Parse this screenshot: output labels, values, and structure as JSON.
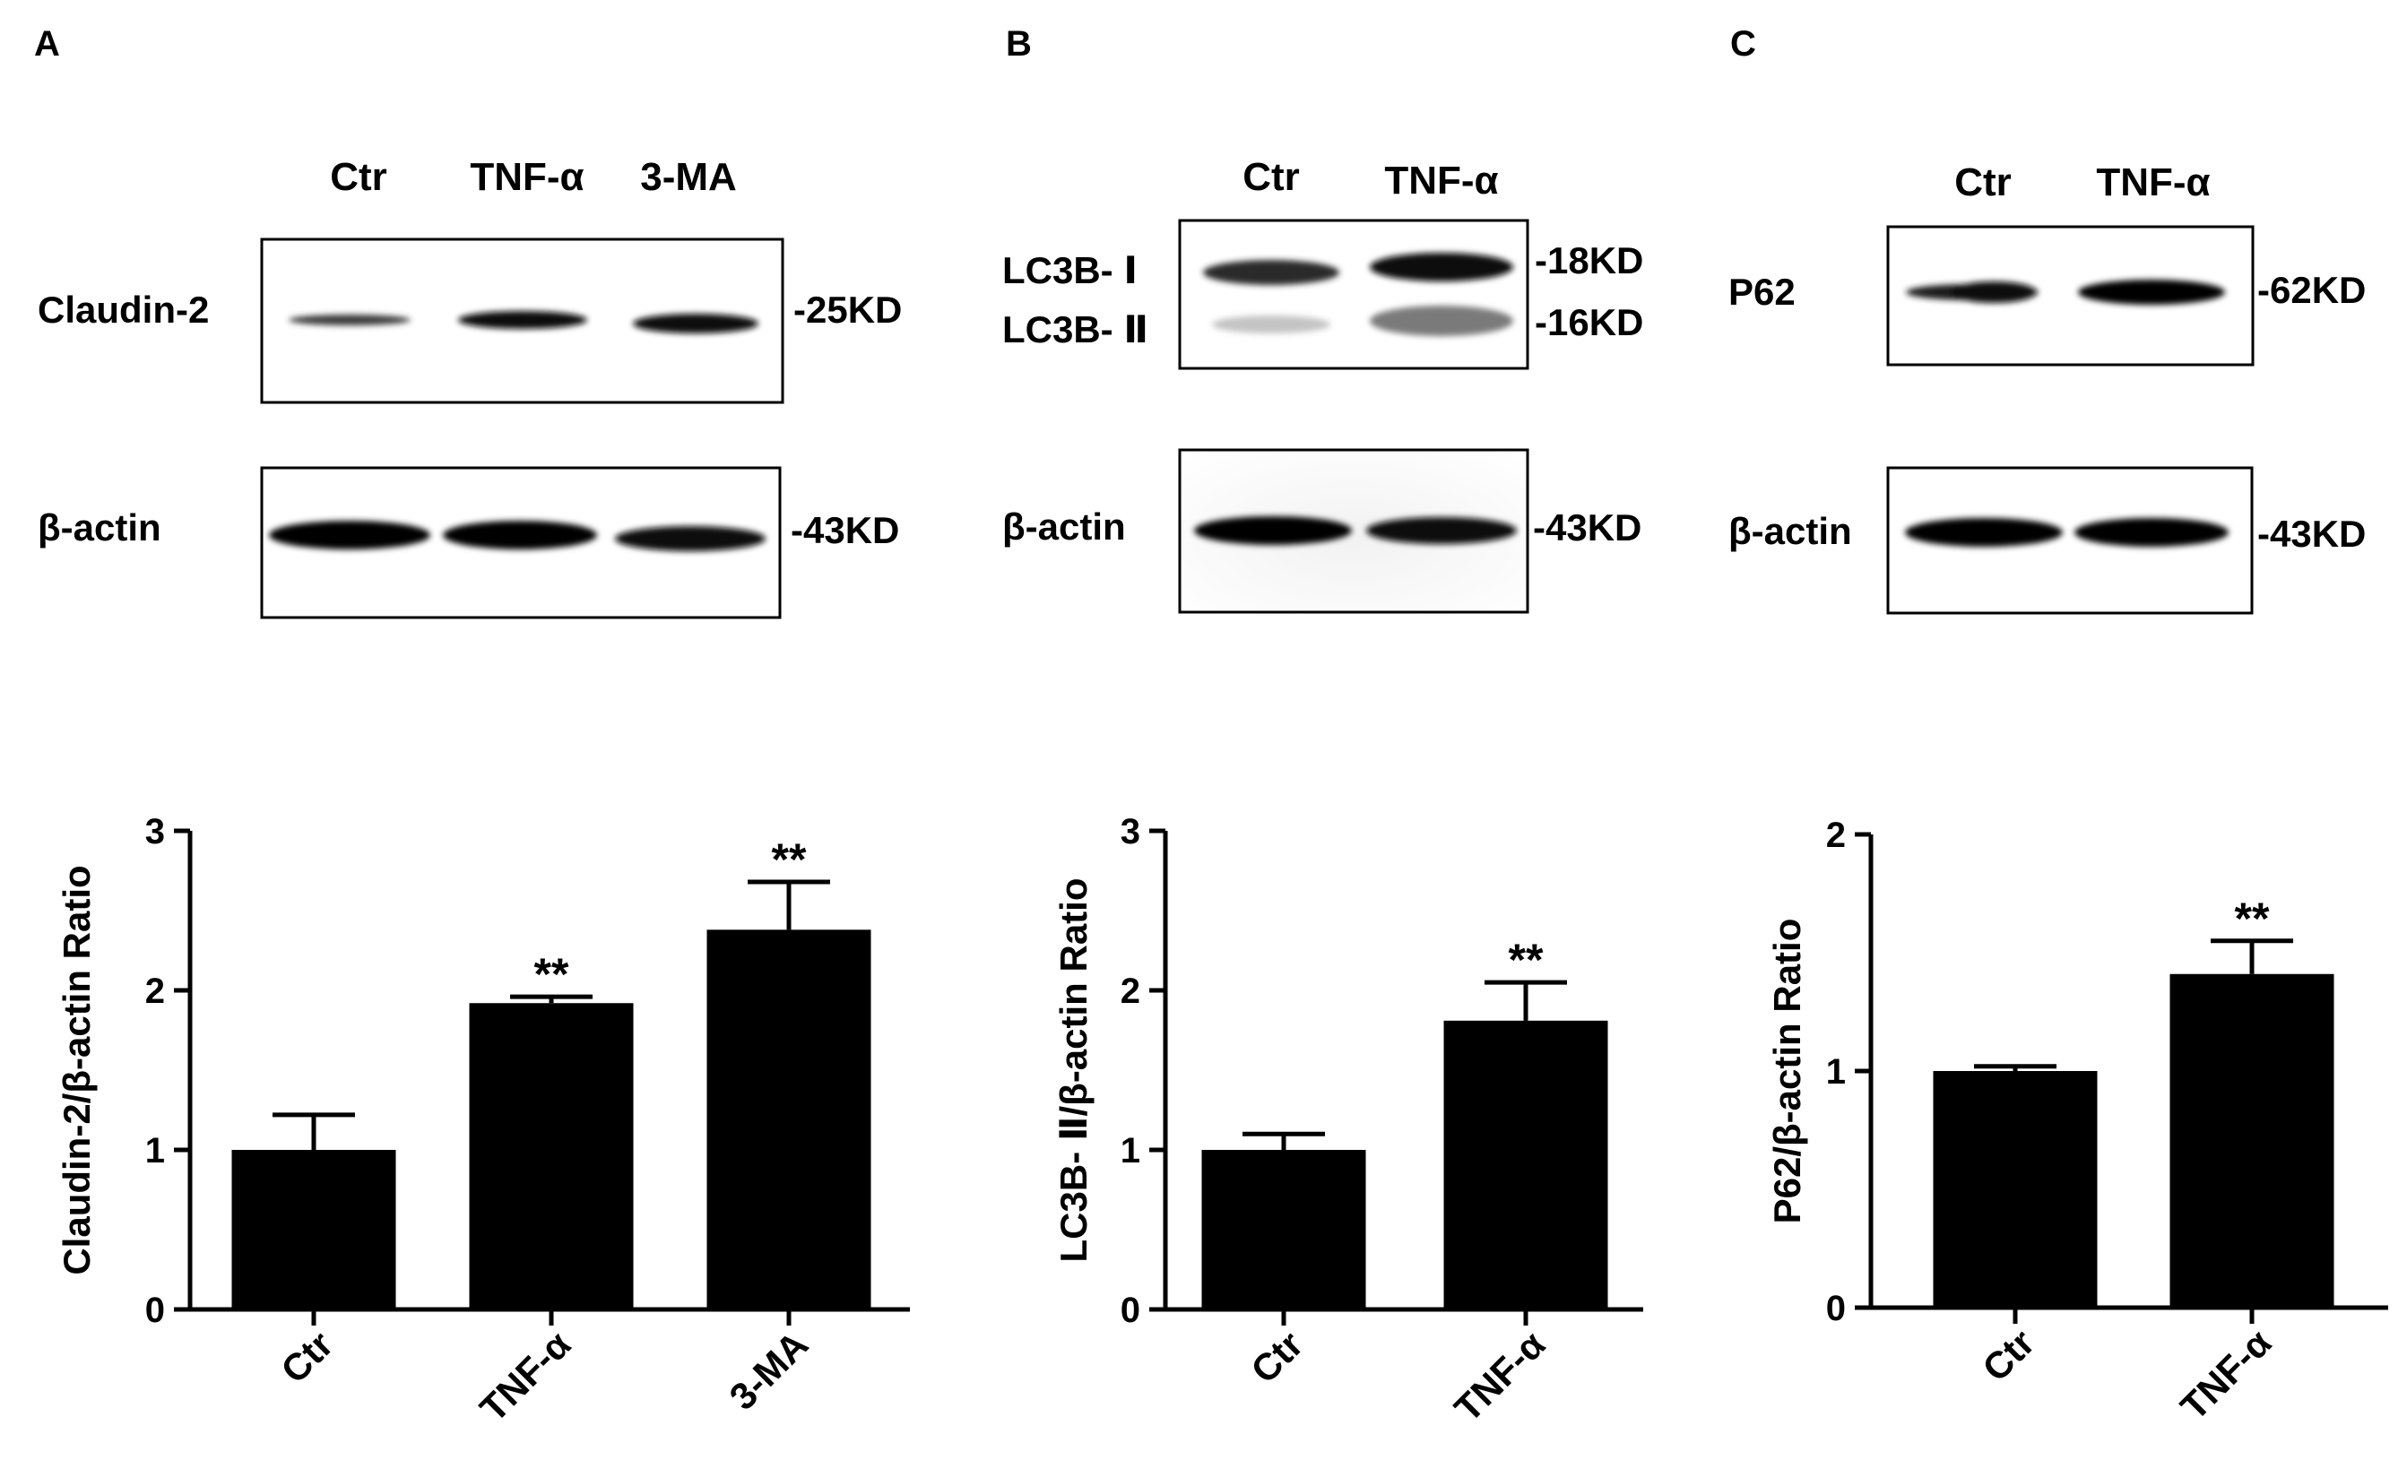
{
  "panels": [
    {
      "letter": "A",
      "lanes": [
        "Ctr",
        "TNF-α",
        "3-MA"
      ],
      "blots": [
        {
          "label": "Claudin-2",
          "markers": [
            "-25KD"
          ]
        },
        {
          "label": "β-actin",
          "markers": [
            "-43KD"
          ]
        }
      ]
    },
    {
      "letter": "B",
      "lanes": [
        "Ctr",
        "TNF-α"
      ],
      "blots": [
        {
          "label": "LC3B- Ⅰ",
          "label2": "LC3B- Ⅱ",
          "markers": [
            "-18KD",
            "-16KD"
          ]
        },
        {
          "label": "β-actin",
          "markers": [
            "-43KD"
          ]
        }
      ]
    },
    {
      "letter": "C",
      "lanes": [
        "Ctr",
        "TNF-α"
      ],
      "blots": [
        {
          "label": "P62",
          "markers": [
            "-62KD"
          ]
        },
        {
          "label": "β-actin",
          "markers": [
            "-43KD"
          ]
        }
      ]
    }
  ],
  "chart_data": [
    {
      "type": "bar",
      "categories": [
        "Ctr",
        "TNF-α",
        "3-MA"
      ],
      "values": [
        1.0,
        1.92,
        2.38
      ],
      "errors": [
        0.22,
        0.04,
        0.3
      ],
      "significance": [
        "",
        "**",
        "**"
      ],
      "ylabel": "Claudin-2/β-actin Ratio",
      "ylim": [
        0,
        3
      ],
      "yticks": [
        "0",
        "1",
        "2",
        "3"
      ],
      "bar_color": "#000000"
    },
    {
      "type": "bar",
      "categories": [
        "Ctr",
        "TNF-α"
      ],
      "values": [
        1.0,
        1.81
      ],
      "errors": [
        0.1,
        0.24
      ],
      "significance": [
        "",
        "**"
      ],
      "ylabel": "LC3B- Ⅱ/β-actin Ratio",
      "ylim": [
        0,
        3
      ],
      "yticks": [
        "0",
        "1",
        "2",
        "3"
      ],
      "bar_color": "#000000"
    },
    {
      "type": "bar",
      "categories": [
        "Ctr",
        "TNF-α"
      ],
      "values": [
        1.0,
        1.41
      ],
      "errors": [
        0.02,
        0.14
      ],
      "significance": [
        "",
        "**"
      ],
      "ylabel": "P62/β-actin Ratio",
      "ylim": [
        0,
        2
      ],
      "yticks": [
        "0",
        "1",
        "2"
      ],
      "bar_color": "#000000"
    }
  ]
}
